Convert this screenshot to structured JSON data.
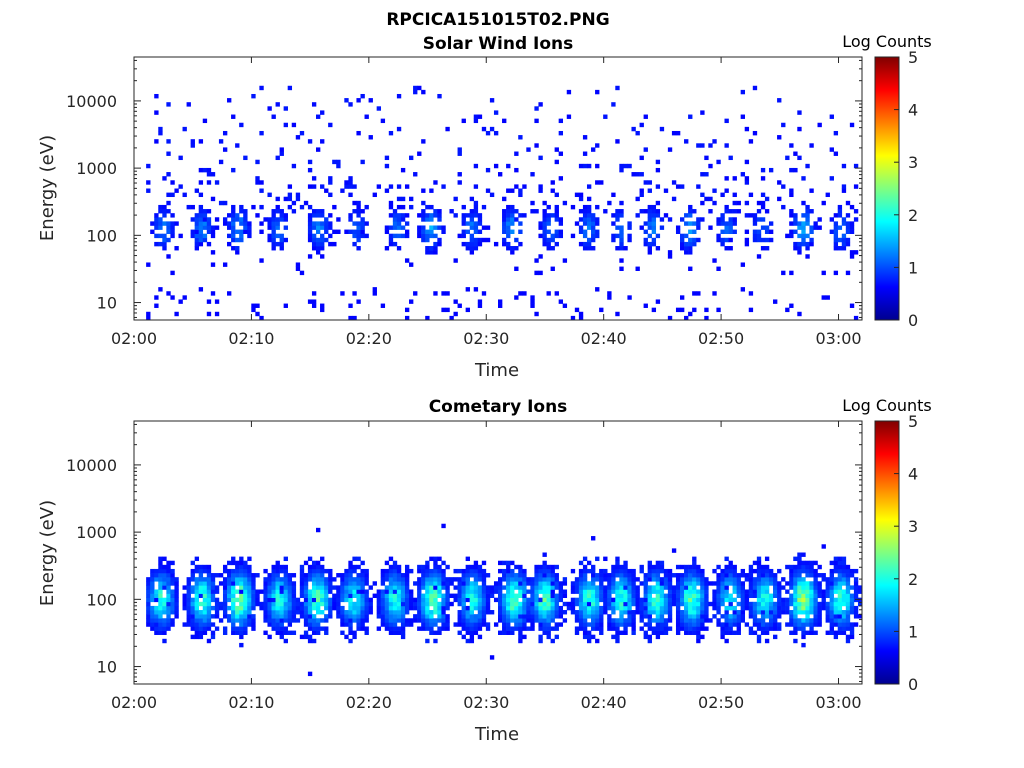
{
  "figure_title": "RPCICA151015T02.PNG",
  "chart_data": [
    {
      "type": "heatmap",
      "title": "Solar Wind Ions",
      "xlabel": "Time",
      "ylabel": "Energy (eV)",
      "x_tick_labels": [
        "02:00",
        "02:10",
        "02:20",
        "02:30",
        "02:40",
        "02:50",
        "03:00"
      ],
      "x_range_min": [
        0,
        62
      ],
      "y_tick_labels": [
        "10",
        "100",
        "1000",
        "10000"
      ],
      "y_scale": "log",
      "y_range_eV": [
        5.5,
        45000
      ],
      "colorbar": {
        "title": "Log Counts",
        "tick_labels": [
          "0",
          "1",
          "2",
          "3",
          "4",
          "5"
        ],
        "range": [
          0,
          5
        ],
        "colormap": "jet"
      },
      "bursts": [
        {
          "t": 2.5,
          "level": 0.9
        },
        {
          "t": 5.8,
          "level": 1.0
        },
        {
          "t": 8.9,
          "level": 1.1
        },
        {
          "t": 12.3,
          "level": 0.8
        },
        {
          "t": 15.8,
          "level": 1.0
        },
        {
          "t": 19.0,
          "level": 0.7
        },
        {
          "t": 22.5,
          "level": 0.9
        },
        {
          "t": 25.3,
          "level": 1.2
        },
        {
          "t": 28.8,
          "level": 0.9
        },
        {
          "t": 32.2,
          "level": 1.1
        },
        {
          "t": 35.5,
          "level": 0.8
        },
        {
          "t": 38.7,
          "level": 0.9
        },
        {
          "t": 41.5,
          "level": 0.8
        },
        {
          "t": 44.2,
          "level": 0.9
        },
        {
          "t": 47.3,
          "level": 1.1
        },
        {
          "t": 50.5,
          "level": 0.8
        },
        {
          "t": 53.5,
          "level": 0.8
        },
        {
          "t": 57.0,
          "level": 1.3
        },
        {
          "t": 60.2,
          "level": 0.9
        }
      ]
    },
    {
      "type": "heatmap",
      "title": "Cometary Ions",
      "xlabel": "Time",
      "ylabel": "Energy (eV)",
      "x_tick_labels": [
        "02:00",
        "02:10",
        "02:20",
        "02:30",
        "02:40",
        "02:50",
        "03:00"
      ],
      "x_range_min": [
        0,
        62
      ],
      "y_tick_labels": [
        "10",
        "100",
        "1000",
        "10000"
      ],
      "y_scale": "log",
      "y_range_eV": [
        5.5,
        45000
      ],
      "colorbar": {
        "title": "Log Counts",
        "tick_labels": [
          "0",
          "1",
          "2",
          "3",
          "4",
          "5"
        ],
        "range": [
          0,
          5
        ],
        "colormap": "jet"
      },
      "bursts": [
        {
          "t": 2.3,
          "level": 1.7
        },
        {
          "t": 5.8,
          "level": 1.8
        },
        {
          "t": 9.0,
          "level": 2.2
        },
        {
          "t": 12.4,
          "level": 1.6
        },
        {
          "t": 15.6,
          "level": 1.9
        },
        {
          "t": 18.7,
          "level": 1.5
        },
        {
          "t": 22.2,
          "level": 1.6
        },
        {
          "t": 25.5,
          "level": 2.1
        },
        {
          "t": 28.8,
          "level": 1.6
        },
        {
          "t": 32.4,
          "level": 2.0
        },
        {
          "t": 35.0,
          "level": 1.9
        },
        {
          "t": 38.8,
          "level": 1.7
        },
        {
          "t": 41.5,
          "level": 1.7
        },
        {
          "t": 44.5,
          "level": 1.8
        },
        {
          "t": 47.5,
          "level": 1.9
        },
        {
          "t": 50.8,
          "level": 1.5
        },
        {
          "t": 53.7,
          "level": 1.6
        },
        {
          "t": 57.0,
          "level": 2.3
        },
        {
          "t": 60.2,
          "level": 1.8
        }
      ]
    }
  ]
}
